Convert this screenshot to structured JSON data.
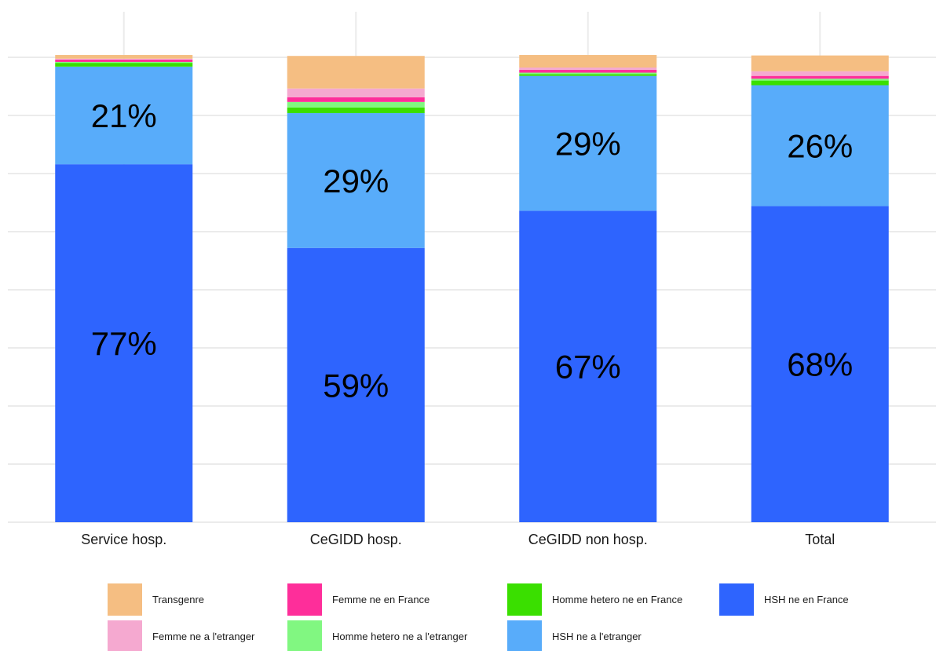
{
  "chart_data": {
    "type": "bar",
    "stacked": true,
    "categories": [
      "Service hosp.",
      "CeGIDD hosp.",
      "CeGIDD non hosp.",
      "Total"
    ],
    "ylim": [
      0,
      1
    ],
    "grid": true,
    "legend_position": "bottom",
    "series": [
      {
        "name": "HSH ne en France",
        "color": "#2E64FE",
        "values": [
          0.77,
          0.59,
          0.67,
          0.68
        ],
        "labels": [
          "77%",
          "59%",
          "67%",
          "68%"
        ]
      },
      {
        "name": "HSH ne a l'etranger",
        "color": "#58ACFA",
        "values": [
          0.21,
          0.29,
          0.29,
          0.26
        ],
        "labels": [
          "21%",
          "29%",
          "29%",
          "26%"
        ]
      },
      {
        "name": "Homme hetero ne en France",
        "color": "#3ADF00",
        "values": [
          0.008,
          0.012,
          0.004,
          0.01
        ],
        "labels": [
          "",
          "",
          "",
          ""
        ]
      },
      {
        "name": "Homme hetero ne a l'etranger",
        "color": "#81F781",
        "values": [
          0.002,
          0.012,
          0.003,
          0.004
        ],
        "labels": [
          "",
          "",
          "",
          ""
        ]
      },
      {
        "name": "Femme ne en France",
        "color": "#FE2E9A",
        "values": [
          0.005,
          0.01,
          0.006,
          0.006
        ],
        "labels": [
          "",
          "",
          "",
          ""
        ]
      },
      {
        "name": "Femme ne a l'etranger",
        "color": "#F5A9D0",
        "values": [
          0.002,
          0.019,
          0.005,
          0.01
        ],
        "labels": [
          "",
          "",
          "",
          ""
        ]
      },
      {
        "name": "Transgenre",
        "color": "#F5BE82",
        "values": [
          0.008,
          0.07,
          0.027,
          0.034
        ],
        "labels": [
          "",
          "",
          "",
          ""
        ]
      }
    ],
    "legend_order": [
      "Transgenre",
      "Femme ne en France",
      "Homme hetero ne en France",
      "HSH ne en France",
      "Femme ne a l'etranger",
      "Homme hetero ne a l'etranger",
      "HSH ne a l'etranger"
    ]
  }
}
